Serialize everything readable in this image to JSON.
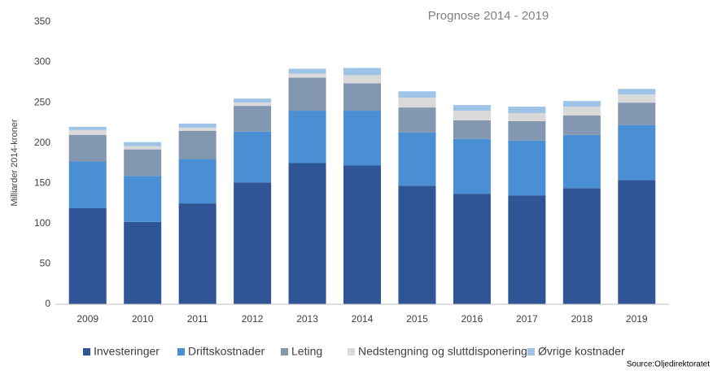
{
  "chart_data": {
    "type": "stacked_bar",
    "y_label": "Milliarder 2014-kroner",
    "annotation": "Prognose 2014 - 2019",
    "source": "Source:Oljedirektoratet",
    "categories": [
      "2009",
      "2010",
      "2011",
      "2012",
      "2013",
      "2014",
      "2015",
      "2016",
      "2017",
      "2018",
      "2019"
    ],
    "series": [
      {
        "name": "Investeringer",
        "color": "#2f5597",
        "values": [
          119,
          102,
          125,
          151,
          175,
          172,
          147,
          137,
          135,
          144,
          154
        ]
      },
      {
        "name": "Driftskostnader",
        "color": "#4a8fd4",
        "values": [
          58,
          57,
          55,
          63,
          65,
          68,
          66,
          68,
          68,
          66,
          68
        ]
      },
      {
        "name": "Leting",
        "color": "#8497b0",
        "values": [
          33,
          33,
          35,
          32,
          41,
          34,
          31,
          23,
          24,
          24,
          28
        ]
      },
      {
        "name": "Nedstengning og sluttdisponering",
        "color": "#d9d9d9",
        "values": [
          6,
          4,
          4,
          4,
          5,
          10,
          12,
          12,
          10,
          11,
          10
        ]
      },
      {
        "name": "Øvrige kostnader",
        "color": "#9dc3e6",
        "values": [
          4,
          5,
          5,
          5,
          6,
          9,
          8,
          7,
          8,
          7,
          7
        ]
      }
    ],
    "ylim": [
      0,
      350
    ],
    "yticks": [
      0,
      50,
      100,
      150,
      200,
      250,
      300,
      350
    ],
    "grid": false
  }
}
